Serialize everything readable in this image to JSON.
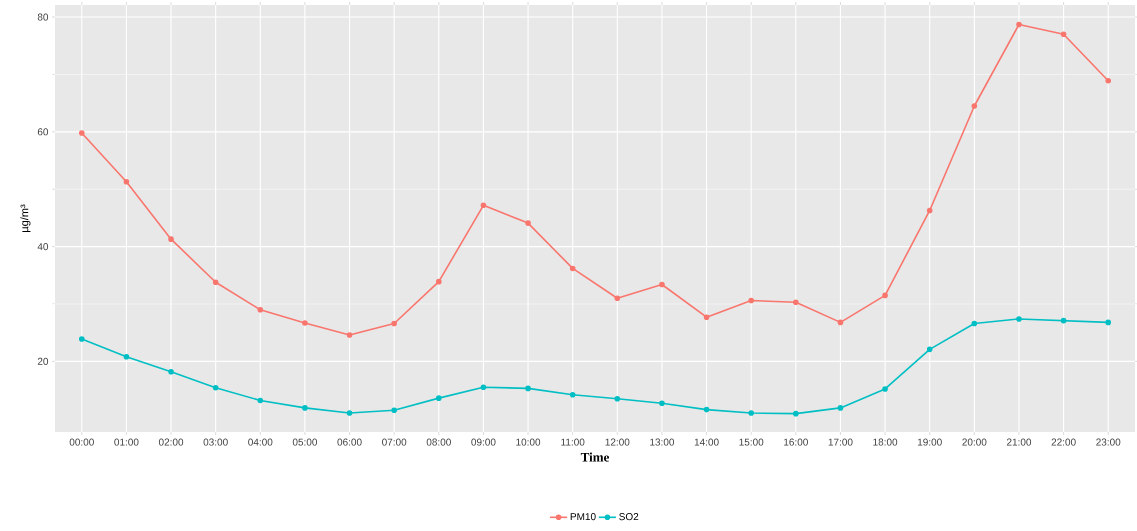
{
  "chart_data": {
    "type": "line",
    "xlabel": "Time",
    "ylabel": "µg/m³",
    "categories": [
      "00:00",
      "01:00",
      "02:00",
      "03:00",
      "04:00",
      "05:00",
      "06:00",
      "07:00",
      "08:00",
      "09:00",
      "10:00",
      "11:00",
      "12:00",
      "13:00",
      "14:00",
      "15:00",
      "16:00",
      "17:00",
      "18:00",
      "19:00",
      "20:00",
      "21:00",
      "22:00",
      "23:00"
    ],
    "series": [
      {
        "name": "PM10",
        "color": "#f8766d",
        "values": [
          59.8,
          51.3,
          41.3,
          33.8,
          29.0,
          26.7,
          24.6,
          26.6,
          33.9,
          47.2,
          44.1,
          36.2,
          31.0,
          33.4,
          27.7,
          30.6,
          30.3,
          26.8,
          31.5,
          46.3,
          64.5,
          78.7,
          77.0,
          68.9
        ]
      },
      {
        "name": "SO2",
        "color": "#00bfc4",
        "values": [
          23.9,
          20.8,
          18.2,
          15.4,
          13.2,
          11.9,
          11.0,
          11.5,
          13.6,
          15.5,
          15.3,
          14.2,
          13.5,
          12.7,
          11.6,
          11.0,
          10.9,
          11.9,
          15.2,
          22.1,
          26.6,
          27.4,
          27.1,
          26.8
        ]
      }
    ],
    "ylim": [
      7.7,
      82.1
    ],
    "yticks": [
      20,
      40,
      60,
      80
    ],
    "grid": true,
    "legend": "bottom",
    "marker": "circle",
    "line_style": "solid"
  }
}
